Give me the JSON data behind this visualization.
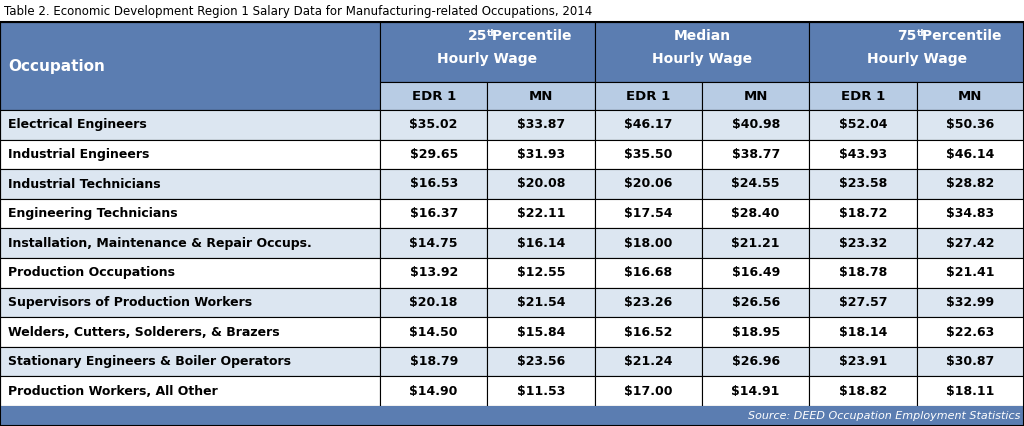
{
  "title": "Table 2. Economic Development Region 1 Salary Data for Manufacturing-related Occupations, 2014",
  "source": "Source: DEED Occupation Employment Statistics",
  "header_bg": "#5b7db1",
  "subheader_bg": "#b8cce4",
  "row_colors": [
    "#dce6f1",
    "#ffffff"
  ],
  "sub_col_labels": [
    "EDR 1",
    "MN",
    "EDR 1",
    "MN",
    "EDR 1",
    "MN"
  ],
  "occupations": [
    "Electrical Engineers",
    "Industrial Engineers",
    "Industrial Technicians",
    "Engineering Technicians",
    "Installation, Maintenance & Repair Occups.",
    "Production Occupations",
    "Supervisors of Production Workers",
    "Welders, Cutters, Solderers, & Brazers",
    "Stationary Engineers & Boiler Operators",
    "Production Workers, All Other"
  ],
  "data": [
    [
      "$35.02",
      "$33.87",
      "$46.17",
      "$40.98",
      "$52.04",
      "$50.36"
    ],
    [
      "$29.65",
      "$31.93",
      "$35.50",
      "$38.77",
      "$43.93",
      "$46.14"
    ],
    [
      "$16.53",
      "$20.08",
      "$20.06",
      "$24.55",
      "$23.58",
      "$28.82"
    ],
    [
      "$16.37",
      "$22.11",
      "$17.54",
      "$28.40",
      "$18.72",
      "$34.83"
    ],
    [
      "$14.75",
      "$16.14",
      "$18.00",
      "$21.21",
      "$23.32",
      "$27.42"
    ],
    [
      "$13.92",
      "$12.55",
      "$16.68",
      "$16.49",
      "$18.78",
      "$21.41"
    ],
    [
      "$20.18",
      "$21.54",
      "$23.26",
      "$26.56",
      "$27.57",
      "$32.99"
    ],
    [
      "$14.50",
      "$15.84",
      "$16.52",
      "$18.95",
      "$18.14",
      "$22.63"
    ],
    [
      "$18.79",
      "$23.56",
      "$21.24",
      "$26.96",
      "$23.91",
      "$30.87"
    ],
    [
      "$14.90",
      "$11.53",
      "$17.00",
      "$14.91",
      "$18.82",
      "$18.11"
    ]
  ],
  "figsize": [
    10.24,
    4.26
  ],
  "dpi": 100
}
